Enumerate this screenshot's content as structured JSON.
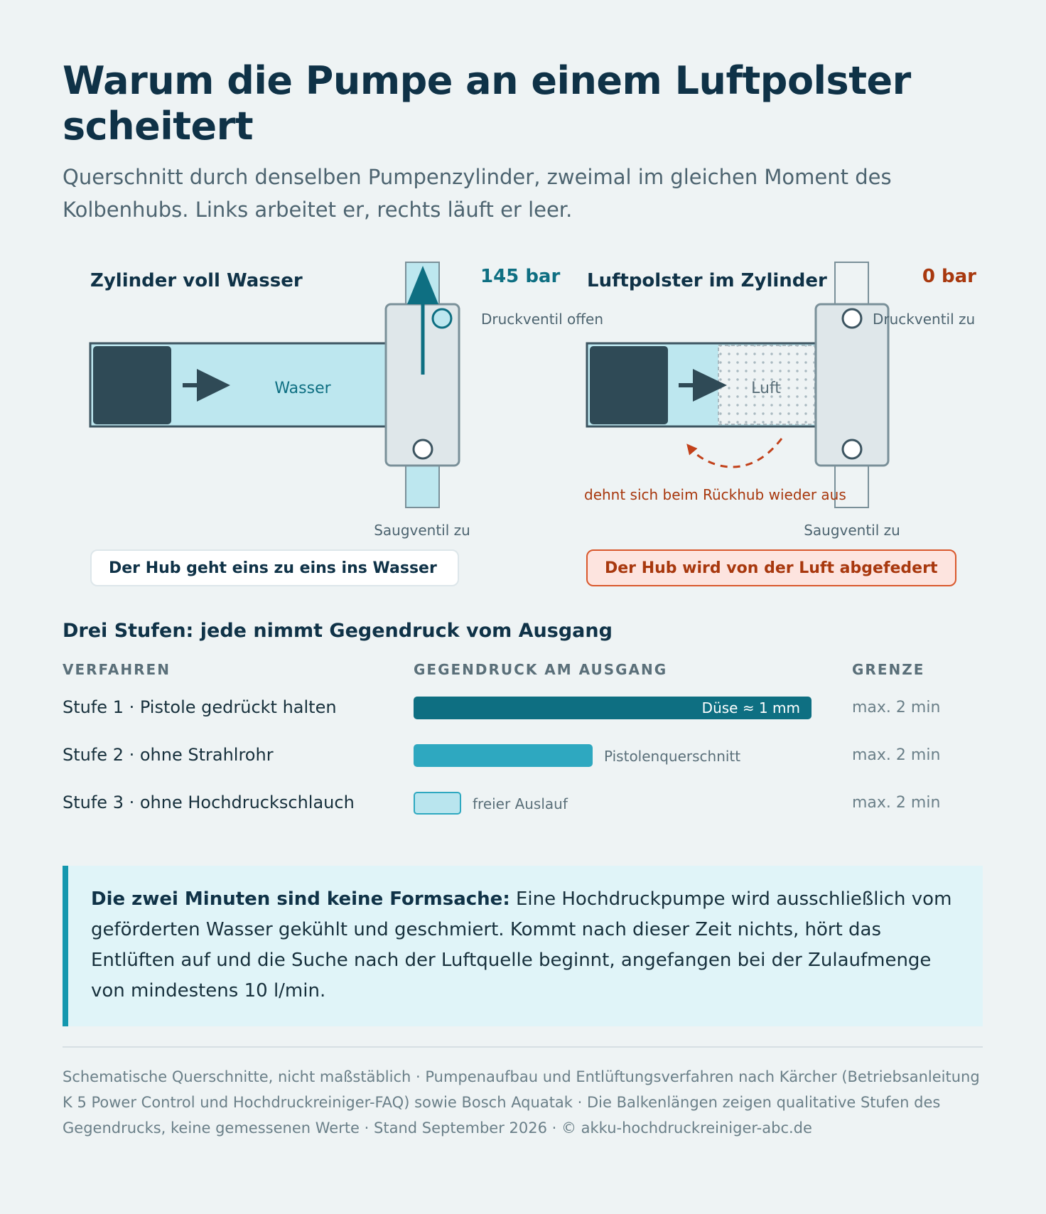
{
  "title": "Warum die Pumpe an einem Luftpolster scheitert",
  "subtitle": "Querschnitt durch denselben Pumpenzylinder, zweimal im gleichen Moment des Kolbenhubs. Links arbeitet er, rechts läuft er leer.",
  "diagram_left": {
    "heading": "Zylinder voll Wasser",
    "pressure": "145 bar",
    "outlet_valve": "Druckventil offen",
    "medium_label": "Wasser",
    "inlet_valve": "Saugventil zu",
    "caption": "Der Hub geht eins zu eins ins Wasser"
  },
  "diagram_right": {
    "heading": "Luftpolster im Zylinder",
    "pressure": "0 bar",
    "outlet_valve": "Druckventil zu",
    "medium_label": "Luft",
    "rebound_note": "dehnt sich beim Rückhub wieder aus",
    "inlet_valve": "Saugventil zu",
    "caption": "Der Hub wird von der Luft abgefedert"
  },
  "stages": {
    "title": "Drei Stufen: jede nimmt Gegendruck vom Ausgang",
    "headers": {
      "method": "VERFAHREN",
      "pressure": "GEGENDRUCK AM AUSGANG",
      "limit": "GRENZE"
    },
    "rows": [
      {
        "label": "Stufe 1 · Pistole gedrückt halten",
        "bar_label": "Düse ≈ 1 mm",
        "bar_fraction": 1.0,
        "limit": "max. 2 min"
      },
      {
        "label": "Stufe 2 · ohne Strahlrohr",
        "bar_label": "Pistolenquerschnitt",
        "bar_fraction": 0.45,
        "limit": "max. 2 min"
      },
      {
        "label": "Stufe 3 · ohne Hochdruckschlauch",
        "bar_label": "freier Auslauf",
        "bar_fraction": 0.12,
        "limit": "max. 2 min"
      }
    ]
  },
  "note": {
    "lead": "Die zwei Minuten sind keine Formsache:",
    "text": " Eine Hochdruckpumpe wird ausschließlich vom geförderten Wasser gekühlt und geschmiert. Kommt nach dieser Zeit nichts, hört das Entlüften auf und die Suche nach der Luftquelle beginnt, angefangen bei der Zulaufmenge von mindestens 10 l/min."
  },
  "footer": "Schematische Querschnitte, nicht maßstäblich · Pumpenaufbau und Entlüftungsverfahren nach Kärcher (Betriebsanleitung K 5 Power Control und Hochdruckreiniger-FAQ) sowie Bosch Aquatak · Die Balkenlängen zeigen qualitative Stufen des Gegendrucks, keine gemessenen Werte · Stand September 2026 · © akku-hochdruckreiniger-abc.de",
  "colors": {
    "navy": "#0f3247",
    "water": "#bde7ef",
    "accent": "#0e6f82",
    "warning": "#c2411a"
  }
}
